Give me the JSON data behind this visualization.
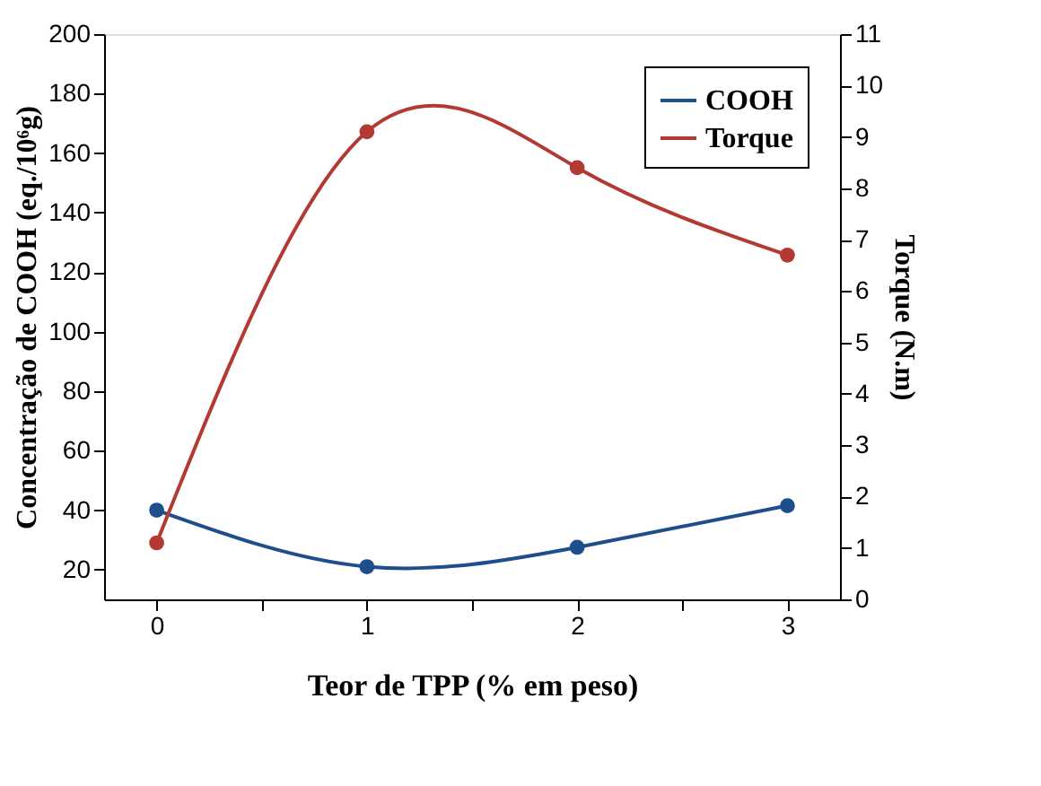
{
  "chart_data": {
    "type": "line",
    "xlabel": "Teor de TPP (% em peso)",
    "ylabel": "Concentração de COOH (eq./10⁶g)",
    "y2label": "Torque (N.m)",
    "x": [
      0,
      1,
      2,
      3
    ],
    "series": [
      {
        "name": "COOH",
        "color": "#1f4e8c",
        "values": [
          40,
          21,
          27.5,
          41.5
        ]
      },
      {
        "name": "Torque",
        "color": "#b23a32",
        "values": [
          1.1,
          9.1,
          8.4,
          6.7
        ],
        "axis": "y2"
      }
    ],
    "xlim": [
      -0.25,
      3.25
    ],
    "xticks": [
      0,
      {
        "value": 0.5,
        "label": null
      },
      1,
      {
        "value": 1.5,
        "label": null
      },
      2,
      {
        "value": 2.5,
        "label": null
      },
      3
    ],
    "ylim": [
      10,
      200
    ],
    "yticks": [
      20,
      40,
      60,
      80,
      100,
      120,
      140,
      160,
      180,
      200
    ],
    "y2lim": [
      0,
      11
    ],
    "y2ticks": [
      0,
      1,
      2,
      3,
      4,
      5,
      6,
      7,
      8,
      9,
      10,
      11
    ],
    "marker": "circle",
    "line_style": "solid",
    "grid": false,
    "legend": "top right"
  }
}
